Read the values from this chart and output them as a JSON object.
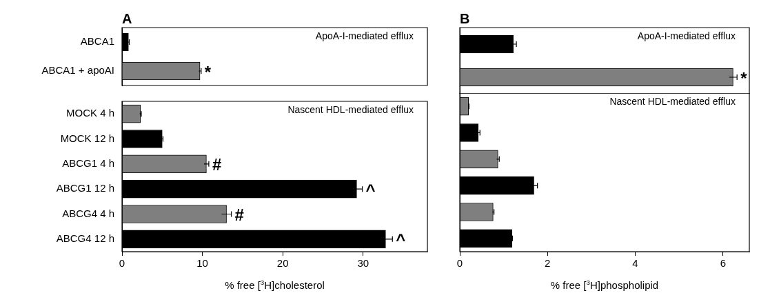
{
  "chart_data": [
    {
      "type": "bar",
      "orientation": "horizontal",
      "title": "A",
      "categories": [
        "ABCA1",
        "ABCA1 + apoAI"
      ],
      "values": [
        0.8,
        9.7
      ],
      "errors": [
        0.1,
        0.15
      ],
      "colors": [
        "#000000",
        "#7f7f7f"
      ],
      "xlim": [
        0,
        38
      ],
      "xticks": [
        0,
        10,
        20,
        30
      ],
      "tick_labels": "y",
      "annotations": [
        "ApoA-I-mediated efflux",
        {
          "text": "*",
          "x": 9.7,
          "y": "ABCA1 + apoAI"
        }
      ]
    },
    {
      "type": "bar",
      "orientation": "horizontal",
      "categories": [
        "MOCK 4 h",
        "MOCK 12 h",
        "ABCG1 4 h",
        "ABCG1 12 h",
        "ABCG4 4 h",
        "ABCG4 12 h"
      ],
      "values": [
        2.3,
        5.0,
        10.5,
        29.2,
        13.0,
        32.8
      ],
      "errors": [
        0.1,
        0.1,
        0.3,
        0.7,
        0.6,
        0.85
      ],
      "colors": [
        "#7f7f7f",
        "#000000",
        "#7f7f7f",
        "#000000",
        "#7f7f7f",
        "#000000"
      ],
      "xlim": [
        0,
        38
      ],
      "xticks": [
        0,
        10,
        20,
        30
      ],
      "xlabel": "% free [$^{3}$H]cholesterol",
      "annotations": [
        "Nascent HDL-mediated efflux",
        {
          "text": "#",
          "x": 10.5,
          "y": "ABCG1 4 h"
        },
        {
          "text": "^",
          "x": 29.2,
          "y": "ABCG1 12 h"
        },
        {
          "text": "#",
          "x": 13.0,
          "y": "ABCG4 4 h"
        },
        {
          "text": "^",
          "x": 32.8,
          "y": "ABCG4 12 h"
        }
      ]
    },
    {
      "type": "bar",
      "orientation": "horizontal",
      "title": "B",
      "categories": [
        null,
        null
      ],
      "values": [
        1.22,
        6.23
      ],
      "errors": [
        0.07,
        0.09
      ],
      "colors": [
        "#000000",
        "#7f7f7f"
      ],
      "xlim": [
        0,
        6.6
      ],
      "xticks": [
        0,
        2,
        4,
        6
      ],
      "tick_labels": false,
      "annotations": [
        "ApoA-I-mediated efflux",
        {
          "text": "*",
          "x": 6.23
        }
      ]
    },
    {
      "type": "bar",
      "orientation": "horizontal",
      "categories": [
        null,
        null,
        null,
        null,
        null,
        null
      ],
      "values": [
        0.2,
        0.42,
        0.87,
        1.69,
        0.76,
        1.19
      ],
      "errors": [
        0.01,
        0.04,
        0.03,
        0.08,
        0.02,
        0.01
      ],
      "colors": [
        "#7f7f7f",
        "#000000",
        "#7f7f7f",
        "#000000",
        "#7f7f7f",
        "#000000"
      ],
      "xlim": [
        0,
        6.6
      ],
      "xticks": [
        0,
        2,
        4,
        6
      ],
      "xlabel": "% free [$^{3}$H]phospholipid",
      "tick_labels": "x",
      "annotations": [
        "Nascent HDL-mediated efflux"
      ]
    }
  ]
}
